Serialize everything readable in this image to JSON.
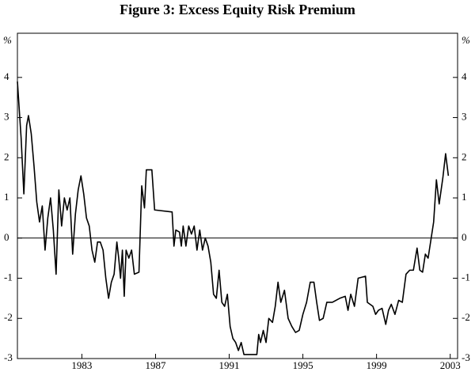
{
  "chart_data": {
    "type": "line",
    "title": "Figure 3: Excess Equity Risk Premium",
    "y_label": "%",
    "y2_label": "%",
    "x": [
      1979.5,
      1979.7,
      1979.85,
      1980.0,
      1980.1,
      1980.25,
      1980.4,
      1980.55,
      1980.7,
      1980.85,
      1981.0,
      1981.15,
      1981.3,
      1981.45,
      1981.6,
      1981.75,
      1981.9,
      1982.05,
      1982.2,
      1982.35,
      1982.5,
      1982.65,
      1982.8,
      1982.95,
      1983.1,
      1983.25,
      1983.4,
      1983.55,
      1983.7,
      1983.85,
      1984.0,
      1984.15,
      1984.3,
      1984.45,
      1984.6,
      1984.75,
      1984.9,
      1985.0,
      1985.1,
      1985.2,
      1985.3,
      1985.4,
      1985.55,
      1985.7,
      1985.85,
      1986.1,
      1986.25,
      1986.4,
      1986.5,
      1986.8,
      1986.95,
      1987.9,
      1988.0,
      1988.1,
      1988.3,
      1988.4,
      1988.5,
      1988.65,
      1988.8,
      1988.95,
      1989.1,
      1989.25,
      1989.4,
      1989.55,
      1989.7,
      1989.85,
      1990.0,
      1990.15,
      1990.3,
      1990.45,
      1990.6,
      1990.75,
      1990.9,
      1991.05,
      1991.2,
      1991.35,
      1991.5,
      1991.65,
      1991.8,
      1992.5,
      1992.6,
      1992.7,
      1992.85,
      1993.0,
      1993.15,
      1993.35,
      1993.5,
      1993.65,
      1993.8,
      1994.0,
      1994.2,
      1994.4,
      1994.6,
      1994.8,
      1995.0,
      1995.2,
      1995.4,
      1995.6,
      1995.75,
      1995.9,
      1996.1,
      1996.3,
      1996.6,
      1997.0,
      1997.3,
      1997.45,
      1997.6,
      1997.8,
      1998.0,
      1998.4,
      1998.5,
      1998.8,
      1998.95,
      1999.1,
      1999.3,
      1999.5,
      1999.65,
      1999.8,
      2000.0,
      2000.2,
      2000.4,
      2000.6,
      2000.8,
      2001.0,
      2001.2,
      2001.35,
      2001.5,
      2001.65,
      2001.8,
      2001.95,
      2002.1,
      2002.25,
      2002.4,
      2002.6,
      2002.75,
      2002.9
    ],
    "series": [
      {
        "name": "Excess equity risk premium",
        "color": "#000000",
        "values": [
          3.9,
          2.5,
          1.1,
          2.8,
          3.05,
          2.6,
          1.8,
          0.9,
          0.4,
          0.8,
          -0.3,
          0.5,
          1.0,
          0.2,
          -0.9,
          1.2,
          0.3,
          1.0,
          0.7,
          1.0,
          -0.4,
          0.6,
          1.2,
          1.55,
          1.1,
          0.5,
          0.3,
          -0.3,
          -0.6,
          -0.1,
          -0.1,
          -0.3,
          -1.0,
          -1.5,
          -1.1,
          -0.9,
          -0.1,
          -0.5,
          -1.0,
          -0.3,
          -1.45,
          -0.3,
          -0.5,
          -0.3,
          -0.9,
          -0.85,
          1.3,
          0.75,
          1.7,
          1.7,
          0.7,
          0.65,
          -0.2,
          0.2,
          0.15,
          -0.2,
          0.3,
          -0.2,
          0.3,
          0.1,
          0.3,
          -0.3,
          0.2,
          -0.3,
          0.0,
          -0.2,
          -0.6,
          -1.4,
          -1.5,
          -0.8,
          -1.6,
          -1.7,
          -1.4,
          -2.2,
          -2.5,
          -2.6,
          -2.8,
          -2.6,
          -2.9,
          -2.9,
          -2.4,
          -2.6,
          -2.3,
          -2.6,
          -2.0,
          -2.1,
          -1.7,
          -1.1,
          -1.6,
          -1.3,
          -2.0,
          -2.2,
          -2.35,
          -2.3,
          -1.9,
          -1.6,
          -1.1,
          -1.1,
          -1.6,
          -2.05,
          -2.0,
          -1.6,
          -1.6,
          -1.5,
          -1.45,
          -1.8,
          -1.4,
          -1.7,
          -1.0,
          -0.95,
          -1.6,
          -1.7,
          -1.9,
          -1.8,
          -1.75,
          -2.15,
          -1.8,
          -1.65,
          -1.9,
          -1.55,
          -1.6,
          -0.9,
          -0.8,
          -0.8,
          -0.25,
          -0.8,
          -0.85,
          -0.4,
          -0.5,
          -0.05,
          0.4,
          1.45,
          0.85,
          1.5,
          2.1,
          1.55
        ]
      }
    ],
    "xlim": [
      1979.5,
      2003.4
    ],
    "xticks": [
      1983,
      1987,
      1991,
      1995,
      1999,
      2003
    ],
    "ylim": [
      -3,
      5.1
    ],
    "yticks": [
      -3,
      -2,
      -1,
      0,
      1,
      2,
      3,
      4
    ],
    "y2lim": [
      -3,
      5.1
    ],
    "y2ticks": [
      -3,
      -2,
      -1,
      0,
      1,
      2,
      3,
      4
    ],
    "zero_line": true
  }
}
